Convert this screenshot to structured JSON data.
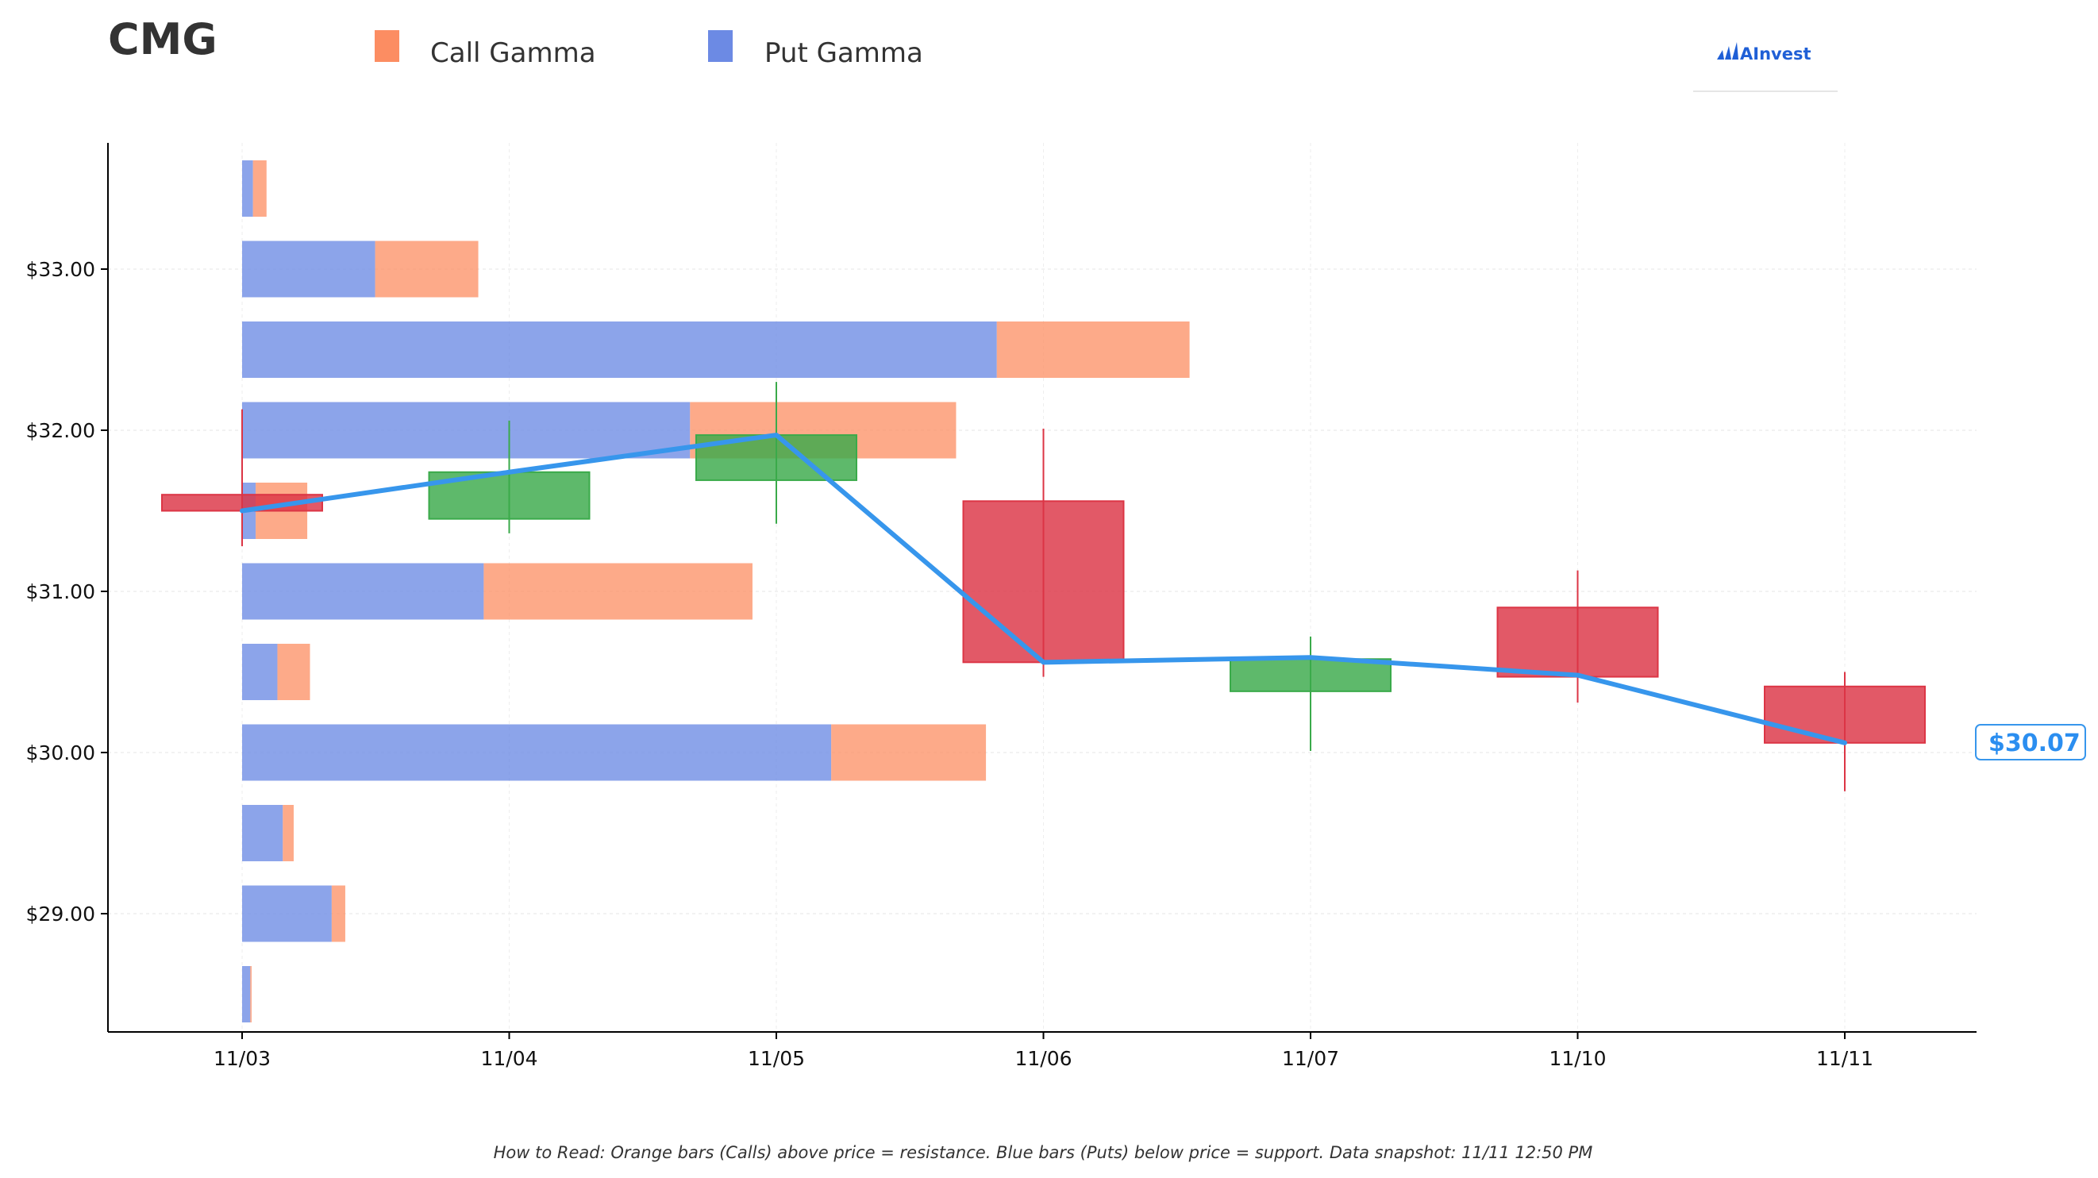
{
  "title": "CMG",
  "legend": {
    "call_label": "Call Gamma",
    "put_label": "Put Gamma",
    "call_color": "#fc8d62",
    "put_color": "#6c8ae4"
  },
  "brand": {
    "name": "AInvest",
    "color": "#1f5fd6"
  },
  "footer": "How to Read: Orange bars (Calls) above price = resistance. Blue bars (Puts) below price = support. Data snapshot: 11/11 12:50 PM",
  "price_label": "$30.07",
  "colors": {
    "up": "#3aaa4a",
    "down": "#dc3545",
    "price_line": "#3796ec"
  },
  "chart_data": {
    "type": "candlestick",
    "categories": [
      "11/03",
      "11/04",
      "11/05",
      "11/06",
      "11/07",
      "11/10",
      "11/11"
    ],
    "y_ticks": [
      "$29.00",
      "$30.00",
      "$31.00",
      "$32.00",
      "$33.00"
    ],
    "y_tick_values": [
      29,
      30,
      31,
      32,
      33
    ],
    "ylim": [
      28.3,
      33.8
    ],
    "grid": true,
    "candles": [
      {
        "date": "11/03",
        "open": 31.6,
        "high": 32.13,
        "low": 31.28,
        "close": 31.5
      },
      {
        "date": "11/04",
        "open": 31.45,
        "high": 32.06,
        "low": 31.36,
        "close": 31.74
      },
      {
        "date": "11/05",
        "open": 31.69,
        "high": 32.3,
        "low": 31.42,
        "close": 31.97
      },
      {
        "date": "11/06",
        "open": 31.56,
        "high": 32.01,
        "low": 30.47,
        "close": 30.56
      },
      {
        "date": "11/07",
        "open": 30.38,
        "high": 30.72,
        "low": 30.01,
        "close": 30.58
      },
      {
        "date": "11/10",
        "open": 30.9,
        "high": 31.13,
        "low": 30.31,
        "close": 30.47
      },
      {
        "date": "11/11",
        "open": 30.41,
        "high": 30.5,
        "low": 29.76,
        "close": 30.06
      }
    ],
    "price_line": [
      31.5,
      31.74,
      31.97,
      30.56,
      30.59,
      30.48,
      30.06
    ],
    "gamma_levels": [
      28.5,
      29.0,
      29.5,
      30.0,
      30.5,
      31.0,
      31.5,
      32.0,
      32.5,
      33.0,
      33.5
    ],
    "put_gamma": [
      0.3,
      3.3,
      1.5,
      21.7,
      1.3,
      8.9,
      0.5,
      16.5,
      27.8,
      4.9,
      0.4
    ],
    "call_gamma": [
      0.05,
      0.5,
      0.4,
      5.7,
      1.2,
      9.9,
      1.9,
      9.8,
      7.1,
      3.8,
      0.5
    ]
  }
}
